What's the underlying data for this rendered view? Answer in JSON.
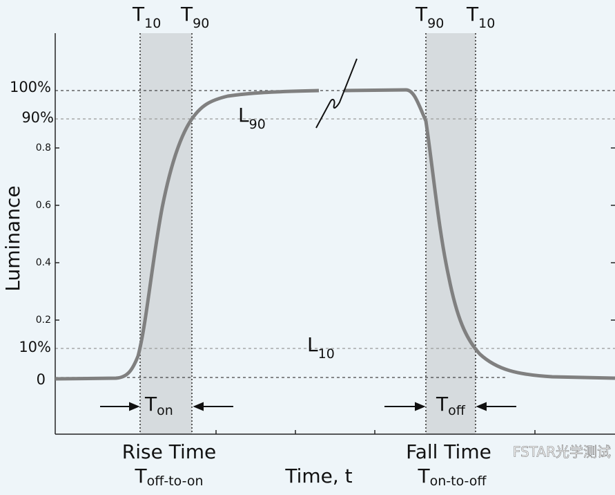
{
  "top_labels": [
    {
      "main": "T",
      "sub": "10"
    },
    {
      "main": "T",
      "sub": "90"
    },
    {
      "main": "T",
      "sub": "90"
    },
    {
      "main": "T",
      "sub": "10"
    }
  ],
  "y_labels": [
    "100%",
    "90%",
    "0.8",
    "0.6",
    "0.4",
    "0.2",
    "10%",
    "0"
  ],
  "y_axis_label": "Luminance",
  "level_labels": [
    {
      "main": "L",
      "sub": "90"
    },
    {
      "main": "L",
      "sub": "10"
    }
  ],
  "interval_labels": [
    {
      "main": "T",
      "sub": "on"
    },
    {
      "main": "T",
      "sub": "off"
    }
  ],
  "rise": {
    "title": "Rise Time",
    "main": "T",
    "sub": "off-to-on"
  },
  "fall": {
    "title": "Fall Time",
    "main": "T",
    "sub": "on-to-off"
  },
  "x_axis_label": "Time, t",
  "watermark": "FSTAR光学测试"
}
